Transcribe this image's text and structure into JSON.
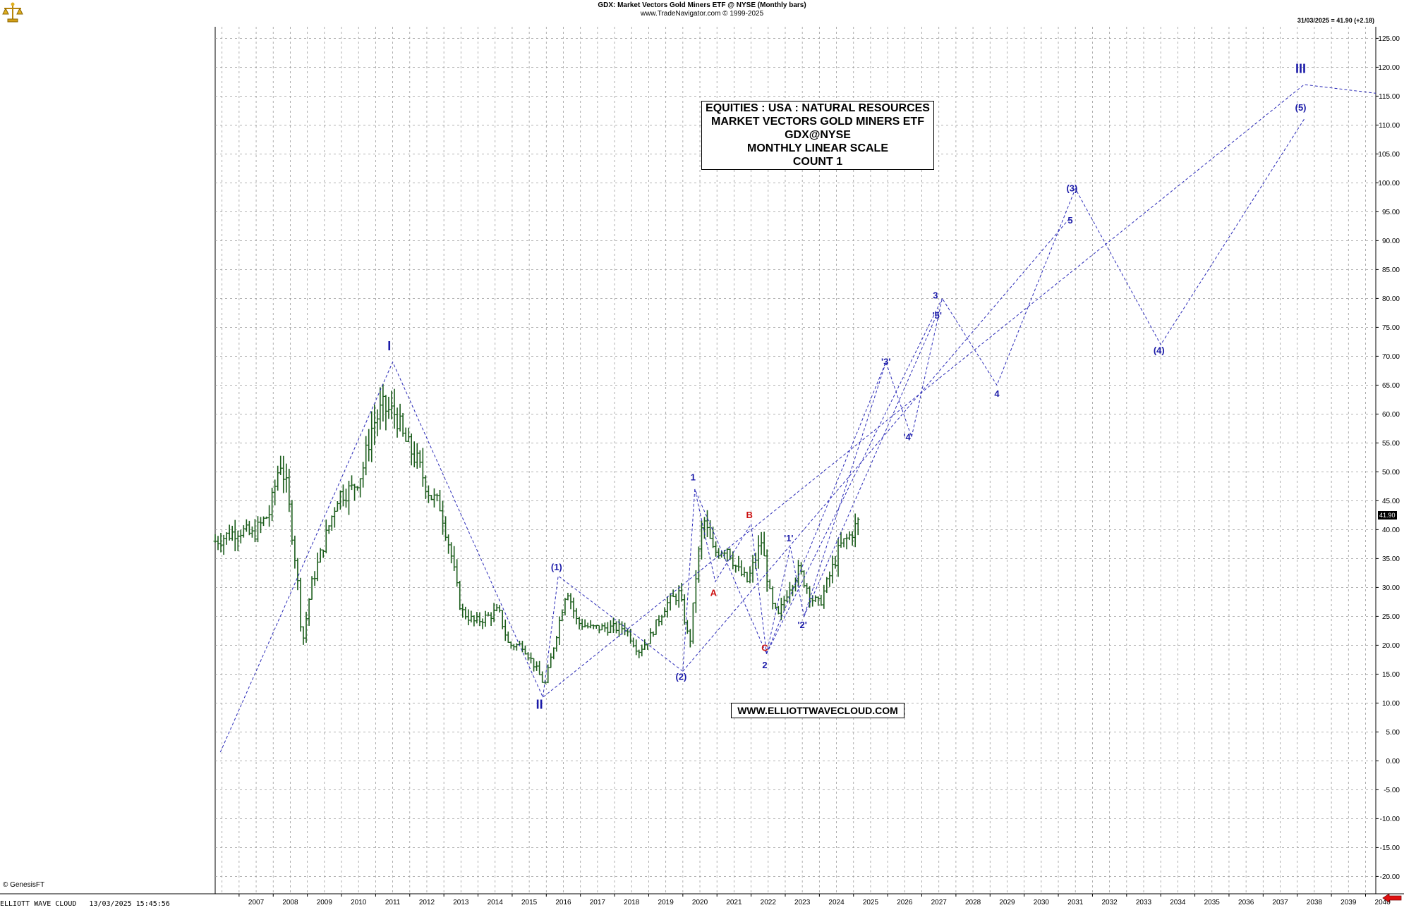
{
  "header": {
    "title": "GDX:  Market Vectors Gold Miners ETF @ NYSE  (Monthly bars)",
    "subtitle": "www.TradeNavigator.com © 1999-2025"
  },
  "last_quote": "31/03/2025 = 41.90 (+2.18)",
  "price_badge": "41.90",
  "info_box": {
    "line1": "EQUITIES : USA : NATURAL RESOURCES",
    "line2": "MARKET VECTORS GOLD MINERS ETF",
    "line3": "GDX@NYSE",
    "line4": "MONTHLY LINEAR SCALE",
    "line5": "COUNT 1"
  },
  "website": "WWW.ELLIOTTWAVECLOUD.COM",
  "genesis_credit": "© GenesisFT",
  "footer": "ELLIOTT WAVE CLOUD   13/03/2025 15:45:56",
  "colors": {
    "wave_blue": "#1a1aa8",
    "wave_red": "#cc1111",
    "bar_green": "#1a5c1a",
    "grid": "#9a9a9a"
  },
  "icons": {
    "logo": "gold-scale-logo-icon",
    "scroll": "red-arrow-left-icon"
  },
  "chart_data": {
    "type": "ohlc-bar",
    "xlim": [
      2006.3,
      2040.3
    ],
    "ylim": [
      -23,
      127
    ],
    "y_ticks": [
      125,
      120,
      115,
      110,
      105,
      100,
      95,
      90,
      85,
      80,
      75,
      70,
      65,
      60,
      55,
      50,
      45,
      40,
      35,
      30,
      25,
      20,
      15,
      10,
      5,
      0,
      -5,
      -10,
      -15,
      -20
    ],
    "x_ticks": [
      2007,
      2008,
      2009,
      2010,
      2011,
      2012,
      2013,
      2014,
      2015,
      2016,
      2017,
      2018,
      2019,
      2020,
      2021,
      2022,
      2023,
      2024,
      2025,
      2026,
      2027,
      2028,
      2029,
      2030,
      2031,
      2032,
      2033,
      2034,
      2035,
      2036,
      2037,
      2038,
      2039,
      2040
    ],
    "grid": true,
    "price_anchors": [
      [
        2006.3,
        38
      ],
      [
        2007.0,
        40
      ],
      [
        2007.4,
        39
      ],
      [
        2007.9,
        43
      ],
      [
        2008.2,
        52
      ],
      [
        2008.4,
        47
      ],
      [
        2008.7,
        32
      ],
      [
        2008.85,
        20
      ],
      [
        2009.1,
        30
      ],
      [
        2009.5,
        38
      ],
      [
        2009.9,
        46
      ],
      [
        2010.3,
        47
      ],
      [
        2010.6,
        50
      ],
      [
        2010.9,
        58
      ],
      [
        2011.2,
        61
      ],
      [
        2011.6,
        60
      ],
      [
        2011.8,
        56
      ],
      [
        2012.2,
        52
      ],
      [
        2012.6,
        46
      ],
      [
        2012.9,
        44
      ],
      [
        2013.2,
        36
      ],
      [
        2013.5,
        26
      ],
      [
        2013.9,
        24
      ],
      [
        2014.3,
        25
      ],
      [
        2014.6,
        26
      ],
      [
        2014.9,
        20
      ],
      [
        2015.3,
        20
      ],
      [
        2015.7,
        16
      ],
      [
        2015.95,
        13
      ],
      [
        2016.3,
        22
      ],
      [
        2016.6,
        30
      ],
      [
        2016.9,
        24
      ],
      [
        2017.3,
        23
      ],
      [
        2017.8,
        23
      ],
      [
        2018.3,
        23
      ],
      [
        2018.7,
        19
      ],
      [
        2019.0,
        21
      ],
      [
        2019.5,
        27
      ],
      [
        2019.9,
        29
      ],
      [
        2020.2,
        20
      ],
      [
        2020.4,
        33
      ],
      [
        2020.6,
        42
      ],
      [
        2020.9,
        36
      ],
      [
        2021.3,
        37
      ],
      [
        2021.6,
        33
      ],
      [
        2021.9,
        31
      ],
      [
        2022.3,
        38
      ],
      [
        2022.6,
        27
      ],
      [
        2022.8,
        25
      ],
      [
        2023.1,
        30
      ],
      [
        2023.4,
        33
      ],
      [
        2023.8,
        28
      ],
      [
        2024.0,
        27
      ],
      [
        2024.3,
        32
      ],
      [
        2024.6,
        37
      ],
      [
        2024.9,
        39
      ],
      [
        2025.2,
        41.9
      ]
    ],
    "wave_labels": [
      {
        "text": "I",
        "x": 2011.4,
        "y": 71,
        "color": "blue",
        "size": "large"
      },
      {
        "text": "II",
        "x": 2015.8,
        "y": 9,
        "color": "blue",
        "size": "large"
      },
      {
        "text": "(1)",
        "x": 2016.3,
        "y": 33,
        "color": "blue"
      },
      {
        "text": "(2)",
        "x": 2019.95,
        "y": 14,
        "color": "blue"
      },
      {
        "text": "1",
        "x": 2020.3,
        "y": 48.5,
        "color": "blue"
      },
      {
        "text": "A",
        "x": 2020.9,
        "y": 28.5,
        "color": "red"
      },
      {
        "text": "B",
        "x": 2021.95,
        "y": 42,
        "color": "red"
      },
      {
        "text": "C",
        "x": 2022.4,
        "y": 19,
        "color": "red"
      },
      {
        "text": "2",
        "x": 2022.4,
        "y": 16,
        "color": "blue"
      },
      {
        "text": "'1'",
        "x": 2023.1,
        "y": 38,
        "color": "blue"
      },
      {
        "text": "'2'",
        "x": 2023.5,
        "y": 23,
        "color": "blue"
      },
      {
        "text": "'3'",
        "x": 2025.95,
        "y": 68.5,
        "color": "blue"
      },
      {
        "text": "'4'",
        "x": 2026.6,
        "y": 55.5,
        "color": "blue"
      },
      {
        "text": "'5'",
        "x": 2027.45,
        "y": 76.5,
        "color": "blue"
      },
      {
        "text": "3",
        "x": 2027.4,
        "y": 80,
        "color": "blue"
      },
      {
        "text": "4",
        "x": 2029.2,
        "y": 63,
        "color": "blue"
      },
      {
        "text": "(3)",
        "x": 2031.4,
        "y": 98.5,
        "color": "blue"
      },
      {
        "text": "5",
        "x": 2031.35,
        "y": 93,
        "color": "blue"
      },
      {
        "text": "(4)",
        "x": 2033.95,
        "y": 70.5,
        "color": "blue"
      },
      {
        "text": "(5)",
        "x": 2038.1,
        "y": 112.5,
        "color": "blue"
      },
      {
        "text": "III",
        "x": 2038.1,
        "y": 119,
        "color": "blue",
        "size": "large"
      }
    ],
    "wave_paths": [
      [
        [
          2006.45,
          1.5
        ],
        [
          2011.5,
          69
        ],
        [
          2015.9,
          11
        ],
        [
          2038.2,
          117
        ],
        [
          2040.3,
          115.5
        ]
      ],
      [
        [
          2015.9,
          11
        ],
        [
          2016.35,
          32
        ],
        [
          2020.0,
          15.5
        ],
        [
          2020.35,
          47
        ],
        [
          2022.45,
          18.5
        ],
        [
          2025.95,
          69
        ],
        [
          2026.7,
          56
        ],
        [
          2027.6,
          80
        ],
        [
          2029.2,
          65
        ],
        [
          2031.5,
          99
        ],
        [
          2034.0,
          72
        ],
        [
          2038.2,
          111
        ]
      ],
      [
        [
          2020.0,
          15.5
        ],
        [
          2031.35,
          94
        ]
      ],
      [
        [
          2020.35,
          47
        ],
        [
          2020.95,
          31
        ],
        [
          2022.0,
          41
        ],
        [
          2022.45,
          18.5
        ]
      ],
      [
        [
          2022.45,
          18.5
        ],
        [
          2023.15,
          37
        ],
        [
          2023.55,
          25
        ],
        [
          2025.95,
          69
        ]
      ],
      [
        [
          2022.45,
          18.5
        ],
        [
          2027.6,
          80
        ]
      ],
      [
        [
          2023.55,
          25
        ],
        [
          2027.5,
          78
        ]
      ]
    ]
  }
}
